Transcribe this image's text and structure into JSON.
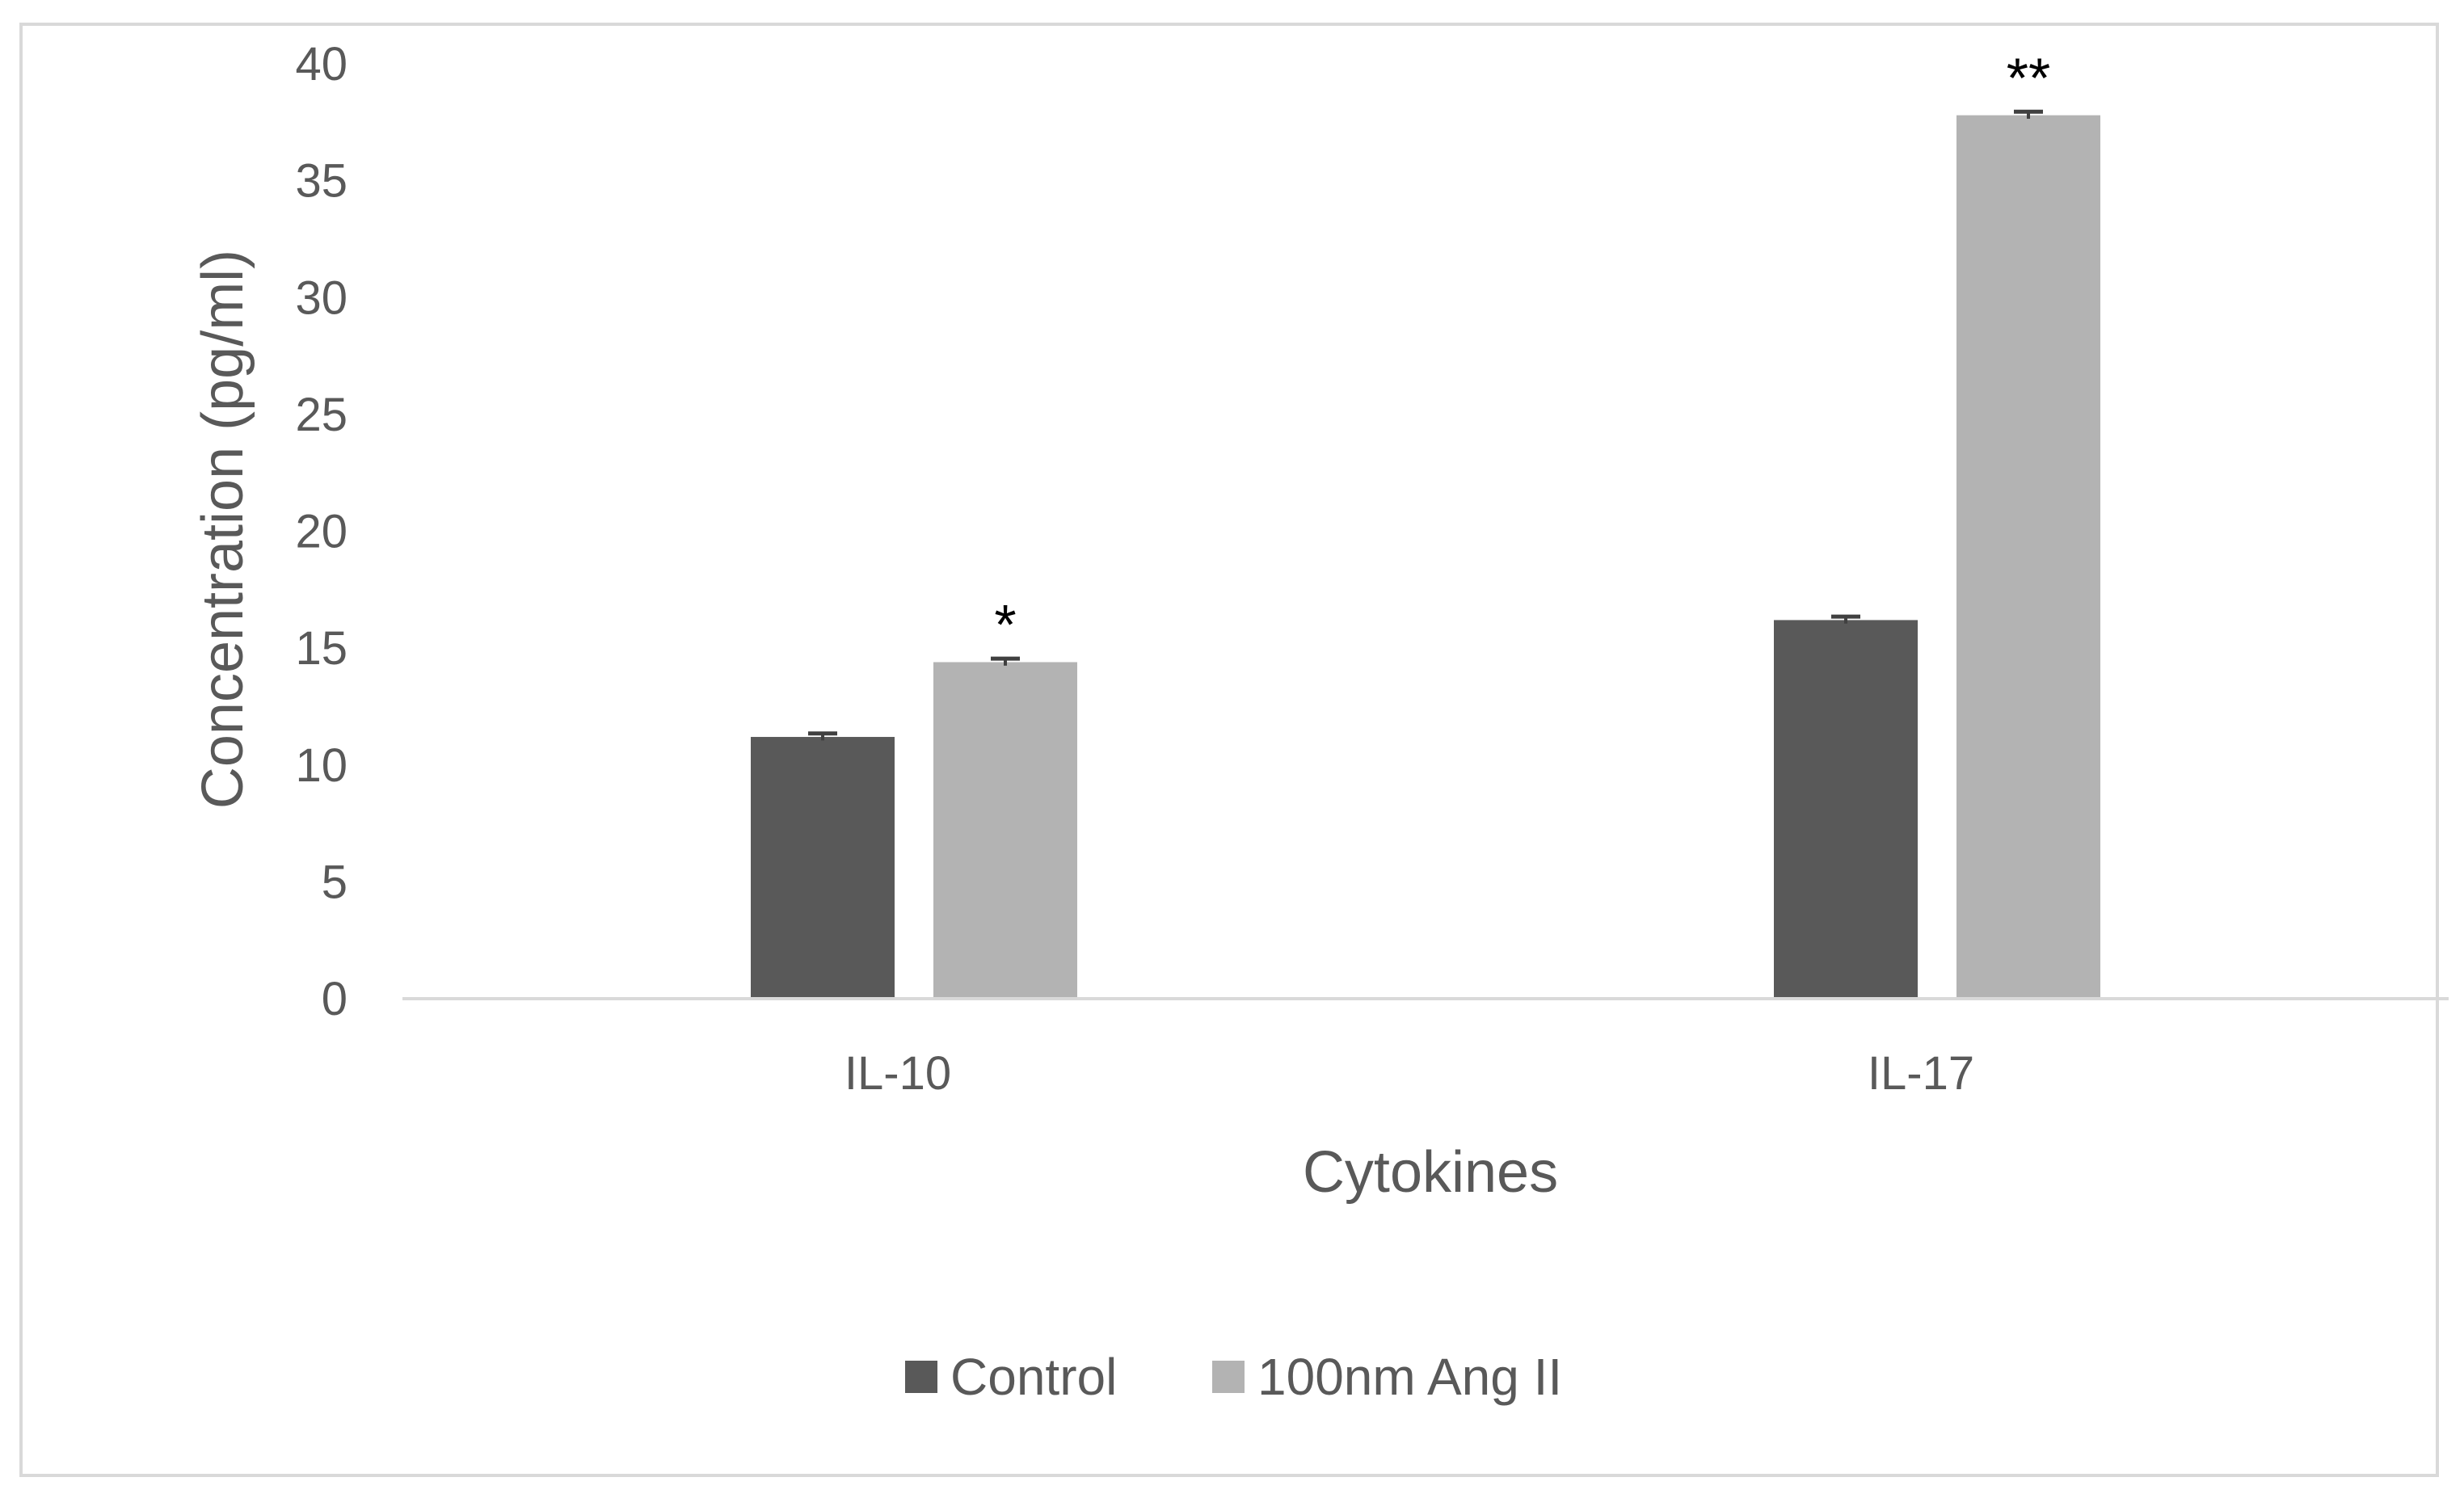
{
  "chart_data": {
    "type": "bar",
    "title": "",
    "xlabel": "Cytokines",
    "ylabel": "Concentration (pg/ml)",
    "ylim": [
      0,
      40
    ],
    "yticks": [
      0,
      5,
      10,
      15,
      20,
      25,
      30,
      35,
      40
    ],
    "categories": [
      "IL-10",
      "IL-17"
    ],
    "series": [
      {
        "name": "Control",
        "color": "#595959",
        "values": [
          11.2,
          16.2
        ],
        "errors": [
          0.15,
          0.15
        ],
        "annotations": [
          "",
          ""
        ]
      },
      {
        "name": "100nm Ang II",
        "color": "#b3b3b3",
        "values": [
          14.4,
          37.8
        ],
        "errors": [
          0.15,
          0.15
        ],
        "annotations": [
          "*",
          "**"
        ]
      }
    ],
    "grid": false,
    "legend_position": "bottom"
  }
}
